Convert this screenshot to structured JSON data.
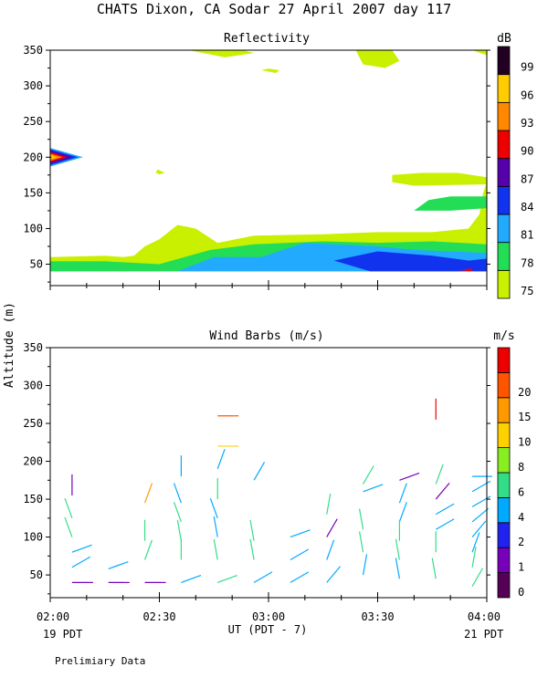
{
  "header": {
    "title": "CHATS Dixon, CA  Sodar  27 April 2007  day 117",
    "footer_note": "Prelimiary Data"
  },
  "x_axis": {
    "title": "UT  (PDT - 7)",
    "ticks": [
      "02:00",
      "02:30",
      "03:00",
      "03:30",
      "04:00"
    ],
    "pdt_start": "19 PDT",
    "pdt_end": "21 PDT"
  },
  "y_axis": {
    "title": "Altitude (m)",
    "ticks": [
      50,
      100,
      150,
      200,
      250,
      300,
      350
    ]
  },
  "chart_data": [
    {
      "type": "heatmap",
      "title": "Reflectivity",
      "colorbar_unit": "dB",
      "xlim": [
        "02:00",
        "04:00"
      ],
      "ylim": [
        20,
        350
      ],
      "legend": {
        "levels": [
          75,
          78,
          81,
          84,
          87,
          90,
          93,
          96,
          99
        ],
        "colors": [
          "#c8f000",
          "#22dd55",
          "#22aaff",
          "#1133ee",
          "#5500aa",
          "#ee0000",
          "#ff8800",
          "#ffcc00",
          "#220022"
        ]
      },
      "regions": [
        {
          "level": 75,
          "color": "#c8f000",
          "points": [
            [
              0,
              60
            ],
            [
              15,
              62
            ],
            [
              20,
              60
            ],
            [
              23,
              62
            ],
            [
              26,
              75
            ],
            [
              30,
              85
            ],
            [
              35,
              105
            ],
            [
              40,
              100
            ],
            [
              46,
              80
            ],
            [
              56,
              90
            ],
            [
              75,
              92
            ],
            [
              90,
              95
            ],
            [
              105,
              95
            ],
            [
              115,
              100
            ],
            [
              118,
              120
            ],
            [
              119,
              150
            ],
            [
              120,
              165
            ],
            [
              124,
              170
            ],
            [
              124,
              40
            ],
            [
              0,
              40
            ]
          ]
        },
        {
          "level": 75,
          "color": "#c8f000",
          "points": [
            [
              94,
              175
            ],
            [
              102,
              178
            ],
            [
              112,
              178
            ],
            [
              120,
              172
            ],
            [
              120,
              162
            ],
            [
              100,
              160
            ],
            [
              94,
              165
            ]
          ]
        },
        {
          "level": 75,
          "color": "#c8f000",
          "points": [
            [
              38,
              350
            ],
            [
              48,
              340
            ],
            [
              56,
              346
            ],
            [
              53,
              350
            ]
          ]
        },
        {
          "level": 75,
          "color": "#c8f000",
          "points": [
            [
              84,
              350
            ],
            [
              86,
              330
            ],
            [
              92,
              325
            ],
            [
              96,
              335
            ],
            [
              94,
              350
            ]
          ]
        },
        {
          "level": 75,
          "color": "#c8f000",
          "points": [
            [
              116,
              350
            ],
            [
              120,
              343
            ],
            [
              124,
              330
            ],
            [
              124,
              350
            ]
          ]
        },
        {
          "level": 75,
          "color": "#c8f000",
          "points": [
            [
              58,
              322
            ],
            [
              62,
              318
            ],
            [
              63,
              322
            ],
            [
              60,
              324
            ]
          ]
        },
        {
          "level": 75,
          "color": "#c8f000",
          "points": [
            [
              29.5,
              183
            ],
            [
              31.5,
              178
            ],
            [
              30,
              176
            ],
            [
              29,
              178
            ]
          ]
        },
        {
          "level": 78,
          "color": "#22dd55",
          "points": [
            [
              0,
              54
            ],
            [
              15,
              54
            ],
            [
              30,
              50
            ],
            [
              44,
              70
            ],
            [
              56,
              78
            ],
            [
              75,
              82
            ],
            [
              90,
              80
            ],
            [
              105,
              82
            ],
            [
              120,
              78
            ],
            [
              124,
              75
            ],
            [
              124,
              40
            ],
            [
              0,
              40
            ]
          ]
        },
        {
          "level": 78,
          "color": "#22dd55",
          "points": [
            [
              100,
              125
            ],
            [
              104,
              140
            ],
            [
              110,
              145
            ],
            [
              124,
              145
            ],
            [
              124,
              130
            ],
            [
              110,
              125
            ]
          ]
        },
        {
          "level": 81,
          "color": "#22aaff",
          "points": [
            [
              35,
              40
            ],
            [
              45,
              60
            ],
            [
              58,
              60
            ],
            [
              70,
              80
            ],
            [
              90,
              75
            ],
            [
              100,
              70
            ],
            [
              124,
              65
            ],
            [
              124,
              40
            ]
          ]
        },
        {
          "level": 84,
          "color": "#1133ee",
          "points": [
            [
              78,
              55
            ],
            [
              90,
              68
            ],
            [
              105,
              62
            ],
            [
              115,
              55
            ],
            [
              124,
              60
            ],
            [
              124,
              40
            ],
            [
              88,
              40
            ]
          ]
        },
        {
          "level": 90,
          "color": "#ee0000",
          "points": [
            [
              112,
              42
            ],
            [
              116,
              44
            ],
            [
              116,
              40
            ]
          ]
        }
      ],
      "features": [
        {
          "name": "spike",
          "x_min": -2,
          "x_max": 9,
          "altitude": 200,
          "levels": [
            81,
            84,
            87,
            90,
            93,
            96,
            99
          ]
        }
      ]
    },
    {
      "type": "scatter",
      "title": "Wind Barbs (m/s)",
      "colorbar_unit": "m/s",
      "xlim": [
        "02:00",
        "04:00"
      ],
      "ylim": [
        20,
        350
      ],
      "legend": {
        "tick_labels": [
          "0",
          "1",
          "2",
          "4",
          "6",
          "8",
          "10",
          "15",
          "20"
        ],
        "colors": [
          "#550055",
          "#7700bb",
          "#2222ee",
          "#00aaff",
          "#33dd88",
          "#88ee22",
          "#ffd000",
          "#ff9900",
          "#ff5500",
          "#ee0000"
        ]
      },
      "barbs": [
        {
          "t": 6,
          "z": 155,
          "dir": 180,
          "c": "#7700bb"
        },
        {
          "t": 6,
          "z": 40,
          "dir": 270,
          "c": "#7700bb"
        },
        {
          "t": 16,
          "z": 40,
          "dir": 270,
          "c": "#7700bb"
        },
        {
          "t": 26,
          "z": 40,
          "dir": 270,
          "c": "#7700bb"
        },
        {
          "t": 6,
          "z": 125,
          "dir": 160,
          "c": "#33dd88"
        },
        {
          "t": 6,
          "z": 100,
          "dir": 160,
          "c": "#33dd88"
        },
        {
          "t": 6,
          "z": 80,
          "dir": 250,
          "c": "#00aaff"
        },
        {
          "t": 6,
          "z": 60,
          "dir": 240,
          "c": "#00aaff"
        },
        {
          "t": 16,
          "z": 58,
          "dir": 250,
          "c": "#00aaff"
        },
        {
          "t": 26,
          "z": 145,
          "dir": 200,
          "c": "#ff9900"
        },
        {
          "t": 26,
          "z": 95,
          "dir": 180,
          "c": "#33dd88"
        },
        {
          "t": 26,
          "z": 70,
          "dir": 200,
          "c": "#33dd88"
        },
        {
          "t": 36,
          "z": 180,
          "dir": 180,
          "c": "#00aaff"
        },
        {
          "t": 36,
          "z": 145,
          "dir": 160,
          "c": "#00aaff"
        },
        {
          "t": 36,
          "z": 120,
          "dir": 160,
          "c": "#33dd88"
        },
        {
          "t": 36,
          "z": 95,
          "dir": 170,
          "c": "#33dd88"
        },
        {
          "t": 36,
          "z": 70,
          "dir": 180,
          "c": "#33dd88"
        },
        {
          "t": 36,
          "z": 40,
          "dir": 250,
          "c": "#00aaff"
        },
        {
          "t": 46,
          "z": 260,
          "dir": 270,
          "c": "#ff5500"
        },
        {
          "t": 46,
          "z": 220,
          "dir": 270,
          "c": "#ffd000"
        },
        {
          "t": 46,
          "z": 190,
          "dir": 200,
          "c": "#00aaff"
        },
        {
          "t": 46,
          "z": 150,
          "dir": 180,
          "c": "#33dd88"
        },
        {
          "t": 46,
          "z": 125,
          "dir": 160,
          "c": "#00aaff"
        },
        {
          "t": 46,
          "z": 100,
          "dir": 170,
          "c": "#00aaff"
        },
        {
          "t": 46,
          "z": 70,
          "dir": 170,
          "c": "#33dd88"
        },
        {
          "t": 46,
          "z": 40,
          "dir": 250,
          "c": "#33dd88"
        },
        {
          "t": 56,
          "z": 175,
          "dir": 210,
          "c": "#00aaff"
        },
        {
          "t": 56,
          "z": 95,
          "dir": 170,
          "c": "#33dd88"
        },
        {
          "t": 56,
          "z": 70,
          "dir": 170,
          "c": "#33dd88"
        },
        {
          "t": 56,
          "z": 40,
          "dir": 240,
          "c": "#00aaff"
        },
        {
          "t": 66,
          "z": 100,
          "dir": 250,
          "c": "#00aaff"
        },
        {
          "t": 66,
          "z": 70,
          "dir": 240,
          "c": "#00aaff"
        },
        {
          "t": 66,
          "z": 40,
          "dir": 240,
          "c": "#00aaff"
        },
        {
          "t": 76,
          "z": 130,
          "dir": 190,
          "c": "#33dd88"
        },
        {
          "t": 76,
          "z": 100,
          "dir": 210,
          "c": "#7700bb"
        },
        {
          "t": 76,
          "z": 70,
          "dir": 200,
          "c": "#00aaff"
        },
        {
          "t": 76,
          "z": 40,
          "dir": 220,
          "c": "#00aaff"
        },
        {
          "t": 86,
          "z": 170,
          "dir": 210,
          "c": "#33dd88"
        },
        {
          "t": 86,
          "z": 160,
          "dir": 250,
          "c": "#00aaff"
        },
        {
          "t": 86,
          "z": 110,
          "dir": 170,
          "c": "#33dd88"
        },
        {
          "t": 86,
          "z": 80,
          "dir": 170,
          "c": "#33dd88"
        },
        {
          "t": 86,
          "z": 50,
          "dir": 190,
          "c": "#00aaff"
        },
        {
          "t": 96,
          "z": 175,
          "dir": 250,
          "c": "#7700bb"
        },
        {
          "t": 96,
          "z": 145,
          "dir": 200,
          "c": "#00aaff"
        },
        {
          "t": 96,
          "z": 120,
          "dir": 200,
          "c": "#00aaff"
        },
        {
          "t": 96,
          "z": 95,
          "dir": 180,
          "c": "#33dd88"
        },
        {
          "t": 96,
          "z": 70,
          "dir": 170,
          "c": "#33dd88"
        },
        {
          "t": 96,
          "z": 45,
          "dir": 170,
          "c": "#00aaff"
        },
        {
          "t": 106,
          "z": 255,
          "dir": 180,
          "c": "#ee0000"
        },
        {
          "t": 106,
          "z": 170,
          "dir": 200,
          "c": "#33dd88"
        },
        {
          "t": 106,
          "z": 150,
          "dir": 220,
          "c": "#7700bb"
        },
        {
          "t": 106,
          "z": 130,
          "dir": 240,
          "c": "#00aaff"
        },
        {
          "t": 106,
          "z": 110,
          "dir": 240,
          "c": "#00aaff"
        },
        {
          "t": 106,
          "z": 80,
          "dir": 180,
          "c": "#33dd88"
        },
        {
          "t": 106,
          "z": 45,
          "dir": 170,
          "c": "#33dd88"
        },
        {
          "t": 116,
          "z": 180,
          "dir": 270,
          "c": "#00aaff"
        },
        {
          "t": 116,
          "z": 160,
          "dir": 240,
          "c": "#00aaff"
        },
        {
          "t": 116,
          "z": 140,
          "dir": 240,
          "c": "#00aaff"
        },
        {
          "t": 116,
          "z": 120,
          "dir": 230,
          "c": "#00aaff"
        },
        {
          "t": 116,
          "z": 100,
          "dir": 220,
          "c": "#00aaff"
        },
        {
          "t": 116,
          "z": 80,
          "dir": 200,
          "c": "#00aaff"
        },
        {
          "t": 116,
          "z": 60,
          "dir": 190,
          "c": "#33dd88"
        },
        {
          "t": 116,
          "z": 35,
          "dir": 210,
          "c": "#33dd88"
        }
      ]
    }
  ]
}
